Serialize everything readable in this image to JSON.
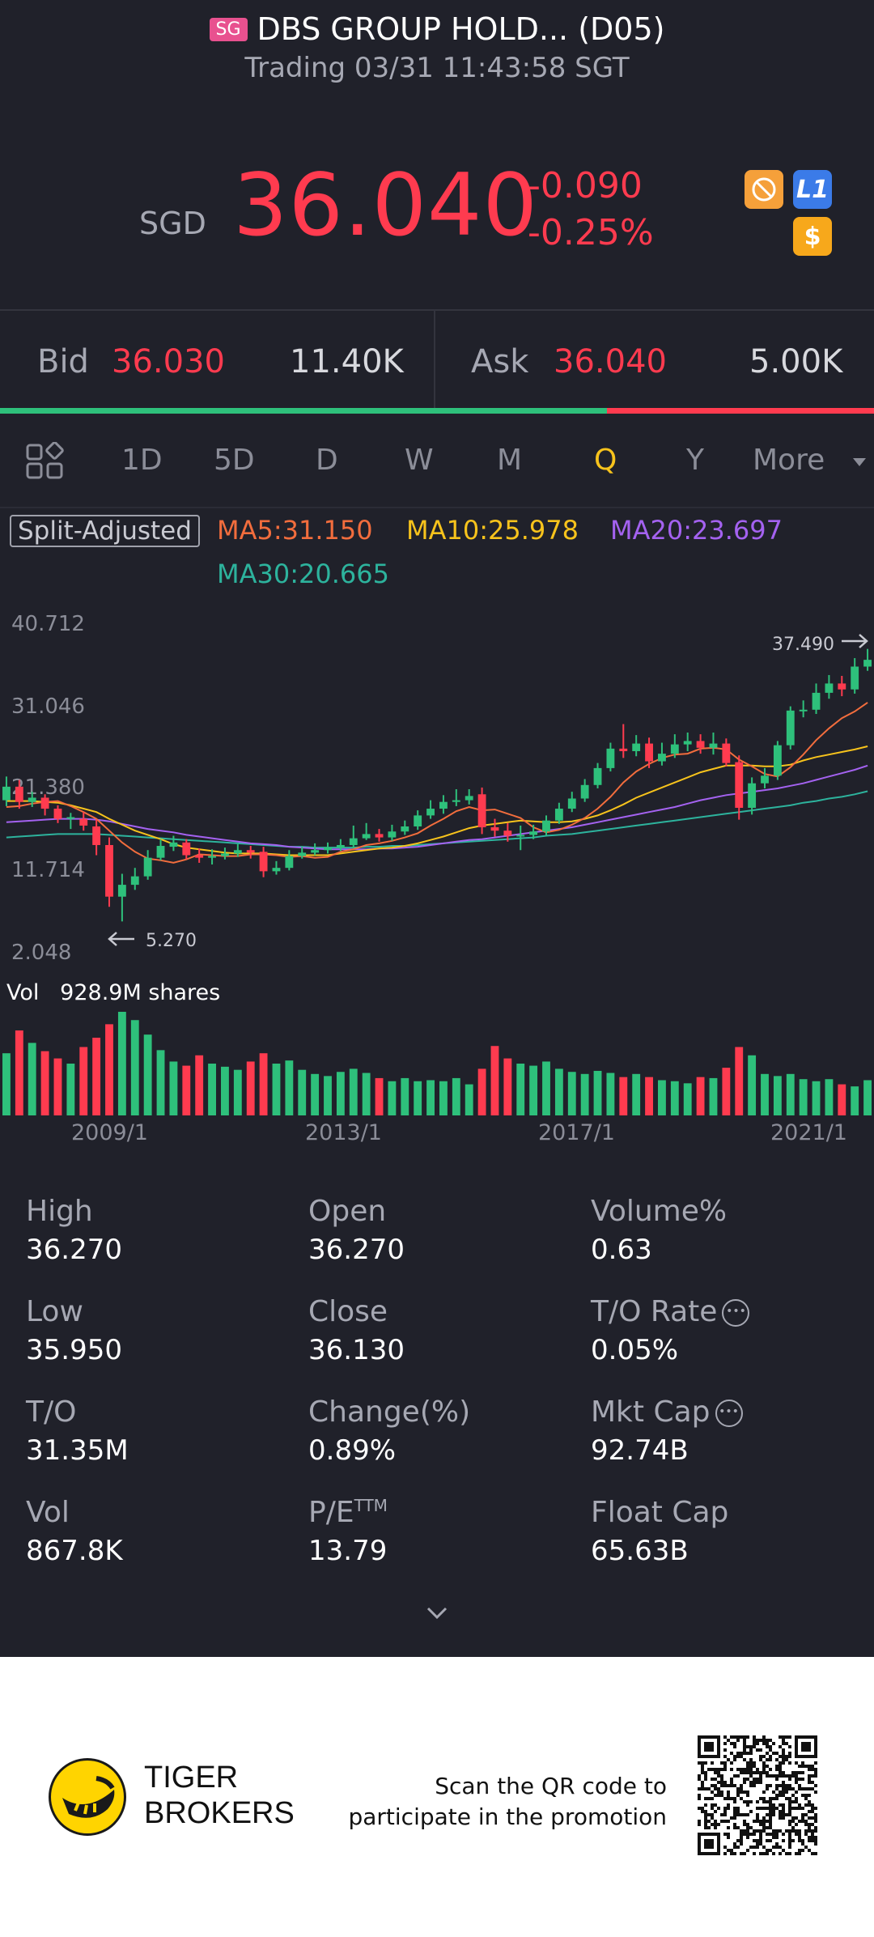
{
  "header": {
    "market_flag": "SG",
    "title": "DBS GROUP HOLD... (D05)",
    "status": "Trading 03/31 11:43:58 SGT"
  },
  "quote": {
    "currency": "SGD",
    "price": "36.040",
    "change": "-0.090",
    "change_pct": "-0.25%",
    "price_color": "#ff3b4f",
    "badges": [
      {
        "icon": "no-margin-icon",
        "color": "#f5a03a"
      },
      {
        "icon": "level1-icon",
        "text": "L1",
        "color": "#3b7be8"
      },
      {
        "icon": "dollar-icon",
        "text": "$",
        "color": "#f7a81b"
      }
    ]
  },
  "orderbook": {
    "bid_label": "Bid",
    "bid_price": "36.030",
    "bid_size": "11.40K",
    "ask_label": "Ask",
    "ask_price": "36.040",
    "ask_size": "5.00K",
    "bid_ratio": 0.694
  },
  "periods": {
    "items": [
      "1D",
      "5D",
      "D",
      "W",
      "M",
      "Q",
      "Y"
    ],
    "active": "Q",
    "more_label": "More"
  },
  "chart_labels": {
    "split": "Split-Adjusted",
    "ma5": "MA5:31.150",
    "ma10": "MA10:25.978",
    "ma20": "MA20:23.697",
    "ma30": "MA30:20.665",
    "ma_colors": {
      "ma5": "#f26d3d",
      "ma10": "#f7c31c",
      "ma20": "#a462f0",
      "ma30": "#2db39d"
    },
    "high_marker": "37.490",
    "low_marker": "5.270",
    "vol_label": "Vol",
    "vol_value": "928.9M shares"
  },
  "chart_data": {
    "type": "candlestick",
    "yticks": [
      "40.712",
      "31.046",
      "21.380",
      "11.714",
      "2.048"
    ],
    "ylim": [
      2.048,
      40.712
    ],
    "xticks": [
      "2009/1",
      "2013/1",
      "2017/1",
      "2021/1"
    ],
    "up_color": "#2ec07b",
    "down_color": "#ff3b4f",
    "candles": [
      {
        "o": 19.6,
        "c": 21.2,
        "h": 22.4,
        "l": 18.9,
        "v": 0.6
      },
      {
        "o": 21.2,
        "c": 19.4,
        "h": 22.0,
        "l": 18.6,
        "v": 0.82
      },
      {
        "o": 19.4,
        "c": 19.9,
        "h": 20.6,
        "l": 18.8,
        "v": 0.7
      },
      {
        "o": 19.9,
        "c": 18.6,
        "h": 20.3,
        "l": 17.8,
        "v": 0.62
      },
      {
        "o": 18.6,
        "c": 17.4,
        "h": 19.0,
        "l": 16.9,
        "v": 0.55
      },
      {
        "o": 17.4,
        "c": 17.6,
        "h": 18.1,
        "l": 16.2,
        "v": 0.5
      },
      {
        "o": 17.4,
        "c": 16.6,
        "h": 18.2,
        "l": 16.0,
        "v": 0.66
      },
      {
        "o": 16.5,
        "c": 14.3,
        "h": 17.3,
        "l": 13.1,
        "v": 0.75
      },
      {
        "o": 14.3,
        "c": 8.2,
        "h": 15.2,
        "l": 7.0,
        "v": 0.88
      },
      {
        "o": 8.2,
        "c": 9.6,
        "h": 10.9,
        "l": 5.27,
        "v": 1.0
      },
      {
        "o": 9.6,
        "c": 10.6,
        "h": 11.6,
        "l": 9.0,
        "v": 0.92
      },
      {
        "o": 10.6,
        "c": 12.8,
        "h": 13.7,
        "l": 10.2,
        "v": 0.78
      },
      {
        "o": 12.8,
        "c": 14.2,
        "h": 15.0,
        "l": 12.5,
        "v": 0.63
      },
      {
        "o": 14.1,
        "c": 14.6,
        "h": 15.4,
        "l": 13.6,
        "v": 0.52
      },
      {
        "o": 14.6,
        "c": 13.1,
        "h": 15.0,
        "l": 12.6,
        "v": 0.48
      },
      {
        "o": 13.1,
        "c": 12.8,
        "h": 13.9,
        "l": 12.2,
        "v": 0.58
      },
      {
        "o": 12.8,
        "c": 13.0,
        "h": 13.8,
        "l": 12.0,
        "v": 0.5
      },
      {
        "o": 13.0,
        "c": 13.3,
        "h": 14.0,
        "l": 12.6,
        "v": 0.47
      },
      {
        "o": 13.3,
        "c": 13.7,
        "h": 14.4,
        "l": 12.9,
        "v": 0.44
      },
      {
        "o": 13.7,
        "c": 13.4,
        "h": 14.2,
        "l": 12.7,
        "v": 0.52
      },
      {
        "o": 13.5,
        "c": 11.2,
        "h": 14.1,
        "l": 10.5,
        "v": 0.6
      },
      {
        "o": 11.2,
        "c": 11.6,
        "h": 12.4,
        "l": 10.8,
        "v": 0.5
      },
      {
        "o": 11.6,
        "c": 13.0,
        "h": 13.7,
        "l": 11.3,
        "v": 0.53
      },
      {
        "o": 13.0,
        "c": 13.4,
        "h": 14.1,
        "l": 12.7,
        "v": 0.44
      },
      {
        "o": 13.4,
        "c": 13.7,
        "h": 14.5,
        "l": 13.1,
        "v": 0.4
      },
      {
        "o": 13.7,
        "c": 14.0,
        "h": 14.6,
        "l": 13.3,
        "v": 0.38
      },
      {
        "o": 14.0,
        "c": 14.3,
        "h": 15.0,
        "l": 13.6,
        "v": 0.42
      },
      {
        "o": 14.3,
        "c": 15.1,
        "h": 16.6,
        "l": 14.0,
        "v": 0.45
      },
      {
        "o": 15.1,
        "c": 15.6,
        "h": 16.9,
        "l": 14.9,
        "v": 0.41
      },
      {
        "o": 15.6,
        "c": 15.2,
        "h": 16.2,
        "l": 14.7,
        "v": 0.36
      },
      {
        "o": 15.2,
        "c": 15.9,
        "h": 16.7,
        "l": 14.8,
        "v": 0.33
      },
      {
        "o": 15.9,
        "c": 16.5,
        "h": 17.2,
        "l": 15.5,
        "v": 0.36
      },
      {
        "o": 16.5,
        "c": 17.8,
        "h": 18.4,
        "l": 16.1,
        "v": 0.33
      },
      {
        "o": 17.8,
        "c": 18.6,
        "h": 19.6,
        "l": 17.4,
        "v": 0.34
      },
      {
        "o": 18.6,
        "c": 19.4,
        "h": 20.2,
        "l": 18.0,
        "v": 0.33
      },
      {
        "o": 19.4,
        "c": 19.6,
        "h": 20.9,
        "l": 18.9,
        "v": 0.36
      },
      {
        "o": 19.6,
        "c": 20.1,
        "h": 20.9,
        "l": 19.1,
        "v": 0.3
      },
      {
        "o": 20.3,
        "c": 16.4,
        "h": 21.1,
        "l": 15.6,
        "v": 0.45
      },
      {
        "o": 16.4,
        "c": 16.0,
        "h": 17.4,
        "l": 15.3,
        "v": 0.67
      },
      {
        "o": 16.0,
        "c": 15.4,
        "h": 16.9,
        "l": 14.7,
        "v": 0.55
      },
      {
        "o": 15.4,
        "c": 15.5,
        "h": 16.6,
        "l": 13.7,
        "v": 0.5
      },
      {
        "o": 15.5,
        "c": 15.9,
        "h": 16.7,
        "l": 15.0,
        "v": 0.48
      },
      {
        "o": 15.9,
        "c": 17.2,
        "h": 17.8,
        "l": 15.4,
        "v": 0.52
      },
      {
        "o": 17.2,
        "c": 18.6,
        "h": 19.3,
        "l": 16.8,
        "v": 0.45
      },
      {
        "o": 18.6,
        "c": 19.8,
        "h": 20.6,
        "l": 18.2,
        "v": 0.42
      },
      {
        "o": 19.8,
        "c": 21.4,
        "h": 22.1,
        "l": 19.4,
        "v": 0.4
      },
      {
        "o": 21.4,
        "c": 23.4,
        "h": 24.0,
        "l": 21.0,
        "v": 0.43
      },
      {
        "o": 23.4,
        "c": 25.7,
        "h": 26.4,
        "l": 23.0,
        "v": 0.41
      },
      {
        "o": 25.7,
        "c": 25.4,
        "h": 28.6,
        "l": 24.6,
        "v": 0.37
      },
      {
        "o": 25.4,
        "c": 26.3,
        "h": 27.3,
        "l": 24.8,
        "v": 0.4
      },
      {
        "o": 26.3,
        "c": 24.2,
        "h": 27.0,
        "l": 23.4,
        "v": 0.37
      },
      {
        "o": 24.2,
        "c": 25.1,
        "h": 26.4,
        "l": 23.7,
        "v": 0.34
      },
      {
        "o": 25.1,
        "c": 26.2,
        "h": 27.4,
        "l": 24.6,
        "v": 0.33
      },
      {
        "o": 26.2,
        "c": 26.6,
        "h": 27.6,
        "l": 25.4,
        "v": 0.31
      },
      {
        "o": 26.6,
        "c": 25.8,
        "h": 27.4,
        "l": 25.1,
        "v": 0.37
      },
      {
        "o": 25.8,
        "c": 26.3,
        "h": 27.6,
        "l": 25.0,
        "v": 0.36
      },
      {
        "o": 26.3,
        "c": 24.0,
        "h": 26.9,
        "l": 23.6,
        "v": 0.46
      },
      {
        "o": 24.1,
        "c": 18.7,
        "h": 24.9,
        "l": 17.3,
        "v": 0.66
      },
      {
        "o": 18.7,
        "c": 21.6,
        "h": 22.3,
        "l": 17.9,
        "v": 0.58
      },
      {
        "o": 21.6,
        "c": 22.5,
        "h": 23.4,
        "l": 21.0,
        "v": 0.4
      },
      {
        "o": 22.5,
        "c": 26.1,
        "h": 26.6,
        "l": 22.0,
        "v": 0.38
      },
      {
        "o": 26.1,
        "c": 30.2,
        "h": 30.7,
        "l": 25.6,
        "v": 0.4
      },
      {
        "o": 30.2,
        "c": 30.3,
        "h": 31.4,
        "l": 29.4,
        "v": 0.35
      },
      {
        "o": 30.3,
        "c": 32.3,
        "h": 33.4,
        "l": 29.8,
        "v": 0.33
      },
      {
        "o": 32.3,
        "c": 33.4,
        "h": 34.4,
        "l": 31.6,
        "v": 0.35
      },
      {
        "o": 33.4,
        "c": 32.7,
        "h": 34.3,
        "l": 31.9,
        "v": 0.3
      },
      {
        "o": 32.7,
        "c": 35.4,
        "h": 36.4,
        "l": 32.2,
        "v": 0.28
      },
      {
        "o": 35.4,
        "c": 36.2,
        "h": 37.49,
        "l": 34.9,
        "v": 0.34
      }
    ],
    "ma_series": {
      "ma5": [
        18.8,
        18.9,
        19.2,
        19.4,
        19.5,
        18.9,
        18.2,
        17.4,
        16.0,
        14.6,
        13.5,
        12.7,
        12.5,
        12.2,
        12.6,
        13.2,
        13.1,
        13.0,
        13.0,
        13.2,
        13.2,
        13.1,
        12.9,
        13.0,
        12.8,
        12.9,
        13.5,
        13.8,
        14.3,
        14.5,
        14.8,
        15.2,
        15.7,
        16.6,
        17.4,
        18.3,
        18.8,
        18.4,
        18.5,
        18.0,
        17.5,
        16.4,
        15.8,
        16.1,
        16.7,
        17.5,
        18.6,
        20.0,
        21.7,
        23.0,
        23.9,
        24.6,
        25.0,
        25.1,
        25.7,
        25.8,
        25.6,
        24.4,
        23.6,
        22.7,
        22.4,
        23.5,
        25.0,
        26.7,
        28.1,
        29.3,
        30.1,
        31.15
      ],
      "ma10": [
        19.5,
        19.5,
        19.5,
        19.4,
        19.3,
        19.0,
        18.6,
        18.2,
        17.4,
        16.7,
        16.0,
        15.5,
        15.0,
        14.4,
        14.0,
        13.8,
        13.6,
        13.4,
        13.3,
        13.3,
        13.3,
        13.2,
        13.1,
        13.1,
        13.1,
        13.1,
        13.3,
        13.5,
        13.7,
        13.9,
        14.0,
        14.2,
        14.5,
        14.9,
        15.3,
        15.8,
        16.3,
        16.6,
        16.8,
        17.0,
        17.2,
        17.1,
        17.0,
        17.0,
        17.1,
        17.4,
        17.8,
        18.4,
        19.1,
        19.9,
        20.5,
        21.1,
        21.7,
        22.3,
        22.9,
        23.3,
        23.7,
        23.7,
        23.7,
        23.6,
        23.6,
        23.8,
        24.3,
        24.7,
        25.0,
        25.3,
        25.6,
        25.978
      ],
      "ma20": [
        17.0,
        17.1,
        17.2,
        17.3,
        17.4,
        17.4,
        17.4,
        17.3,
        17.1,
        16.8,
        16.5,
        16.2,
        16.0,
        15.8,
        15.5,
        15.3,
        15.1,
        14.9,
        14.7,
        14.5,
        14.4,
        14.3,
        14.1,
        14.0,
        13.9,
        13.8,
        13.8,
        13.8,
        13.8,
        13.9,
        13.9,
        14.0,
        14.1,
        14.3,
        14.5,
        14.7,
        14.9,
        15.0,
        15.2,
        15.4,
        15.6,
        15.8,
        16.0,
        16.2,
        16.4,
        16.7,
        17.0,
        17.3,
        17.6,
        17.9,
        18.2,
        18.5,
        18.8,
        19.2,
        19.6,
        19.9,
        20.2,
        20.4,
        20.6,
        20.8,
        21.0,
        21.3,
        21.6,
        22.0,
        22.4,
        22.8,
        23.2,
        23.697
      ],
      "ma30": [
        15.2,
        15.3,
        15.4,
        15.5,
        15.6,
        15.6,
        15.6,
        15.6,
        15.5,
        15.4,
        15.3,
        15.2,
        15.1,
        15.0,
        14.9,
        14.8,
        14.7,
        14.6,
        14.5,
        14.4,
        14.3,
        14.2,
        14.1,
        14.1,
        14.0,
        14.0,
        14.0,
        14.0,
        14.1,
        14.1,
        14.2,
        14.2,
        14.3,
        14.4,
        14.5,
        14.6,
        14.7,
        14.8,
        14.9,
        15.0,
        15.1,
        15.2,
        15.4,
        15.5,
        15.6,
        15.8,
        16.0,
        16.2,
        16.4,
        16.6,
        16.8,
        17.0,
        17.2,
        17.4,
        17.6,
        17.8,
        18.0,
        18.2,
        18.4,
        18.6,
        18.8,
        19.0,
        19.3,
        19.5,
        19.8,
        20.0,
        20.3,
        20.665
      ]
    }
  },
  "stats": [
    {
      "label": "High",
      "value": "36.270"
    },
    {
      "label": "Open",
      "value": "36.270"
    },
    {
      "label": "Volume%",
      "value": "0.63"
    },
    {
      "label": "Low",
      "value": "35.950"
    },
    {
      "label": "Close",
      "value": "36.130"
    },
    {
      "label": "T/O Rate",
      "value": "0.05%",
      "info": true
    },
    {
      "label": "T/O",
      "value": "31.35M"
    },
    {
      "label": "Change(%)",
      "value": "0.89%"
    },
    {
      "label": "Mkt Cap",
      "value": "92.74B",
      "info": true
    },
    {
      "label": "Vol",
      "value": "867.8K"
    },
    {
      "label": "P/E",
      "label_sup": "TTM",
      "value": "13.79"
    },
    {
      "label": "Float Cap",
      "value": "65.63B"
    }
  ],
  "footer": {
    "brand_line1": "TIGER",
    "brand_line2": "BROKERS",
    "promo_line1": "Scan the QR code to",
    "promo_line2": "participate in the promotion"
  }
}
